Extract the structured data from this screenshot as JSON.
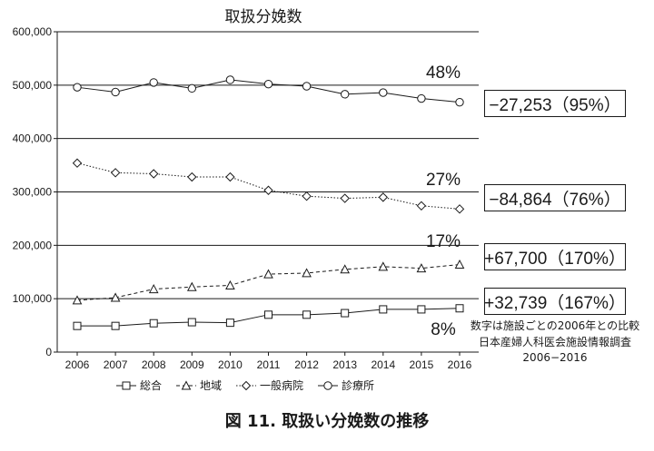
{
  "chart_data": {
    "type": "line",
    "title": "取扱分娩数",
    "categories": [
      "2006",
      "2007",
      "2008",
      "2009",
      "2010",
      "2011",
      "2012",
      "2013",
      "2014",
      "2015",
      "2016"
    ],
    "ylim": [
      0,
      600000
    ],
    "yticks": [
      "0",
      "100,000",
      "200,000",
      "300,000",
      "400,000",
      "500,000",
      "600,000"
    ],
    "ytick_values": [
      0,
      100000,
      200000,
      300000,
      400000,
      500000,
      600000
    ],
    "grid": "horizontal",
    "legend_position": "bottom",
    "series": [
      {
        "name": "総合",
        "marker": "square",
        "dash": "solid",
        "values": [
          49000,
          49000,
          54000,
          56000,
          55000,
          70000,
          70000,
          73000,
          80000,
          80000,
          82000
        ]
      },
      {
        "name": "地域",
        "marker": "triangle",
        "dash": "dashed",
        "values": [
          97000,
          102000,
          118000,
          122000,
          125000,
          146000,
          148000,
          155000,
          160000,
          157000,
          164000
        ]
      },
      {
        "name": "一般病院",
        "marker": "diamond",
        "dash": "dotted",
        "values": [
          354000,
          336000,
          334000,
          328000,
          328000,
          303000,
          292000,
          288000,
          290000,
          274000,
          268000
        ]
      },
      {
        "name": "診療所",
        "marker": "circle",
        "dash": "solid",
        "values": [
          496000,
          487000,
          505000,
          494000,
          510000,
          502000,
          498000,
          483000,
          486000,
          475000,
          468000
        ]
      }
    ],
    "share_labels": [
      "48%",
      "27%",
      "17%",
      "8%"
    ],
    "change_boxes": [
      "−27,253（95%）",
      "−84,864（76%）",
      "+67,700（170%）",
      "+32,739（167%）"
    ]
  },
  "notes": [
    "数字は施設ごとの2006年との比較",
    "日本産婦人科医会施設情報調査",
    "2006−2016"
  ],
  "caption": "図 11.  取扱い分娩数の推移"
}
